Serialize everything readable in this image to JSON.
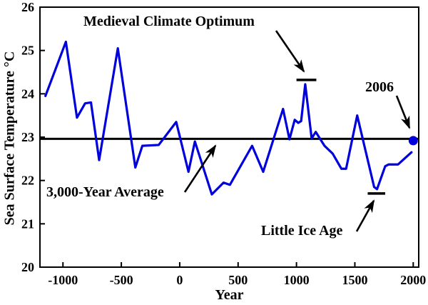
{
  "figure": {
    "background": "#ffffff",
    "axis_color": "#000000",
    "line_color": "#0000dd"
  },
  "chart_data": {
    "type": "line",
    "title": "",
    "xlabel": "Year",
    "ylabel": "Sea Surface Temperature °C",
    "xlim": [
      -1197,
      2047
    ],
    "ylim": [
      20,
      26
    ],
    "xticks": [
      -1000,
      -500,
      0,
      500,
      1000,
      1500,
      2000
    ],
    "yticks": [
      20,
      21,
      22,
      23,
      24,
      25,
      26
    ],
    "grid": false,
    "series": [
      {
        "name": "Sea surface temperature",
        "color": "#0000dd",
        "points": [
          [
            -1150,
            23.95
          ],
          [
            -975,
            25.2
          ],
          [
            -880,
            23.45
          ],
          [
            -810,
            23.78
          ],
          [
            -760,
            23.8
          ],
          [
            -690,
            22.47
          ],
          [
            -530,
            25.05
          ],
          [
            -380,
            22.3
          ],
          [
            -320,
            22.8
          ],
          [
            -180,
            22.82
          ],
          [
            -30,
            23.35
          ],
          [
            75,
            22.2
          ],
          [
            130,
            22.9
          ],
          [
            275,
            21.68
          ],
          [
            375,
            21.95
          ],
          [
            430,
            21.9
          ],
          [
            620,
            22.8
          ],
          [
            715,
            22.2
          ],
          [
            885,
            23.65
          ],
          [
            940,
            22.95
          ],
          [
            985,
            23.4
          ],
          [
            1015,
            23.33
          ],
          [
            1040,
            23.37
          ],
          [
            1075,
            24.22
          ],
          [
            1130,
            22.97
          ],
          [
            1165,
            23.12
          ],
          [
            1240,
            22.8
          ],
          [
            1310,
            22.62
          ],
          [
            1385,
            22.27
          ],
          [
            1425,
            22.27
          ],
          [
            1520,
            23.5
          ],
          [
            1665,
            21.85
          ],
          [
            1690,
            21.8
          ],
          [
            1760,
            22.33
          ],
          [
            1790,
            22.37
          ],
          [
            1870,
            22.37
          ],
          [
            1985,
            22.65
          ]
        ]
      }
    ],
    "average_line": {
      "value": 22.96,
      "label": "3,000-Year Average",
      "color": "#000000"
    },
    "endpoint": {
      "x": 2000,
      "y": 22.92,
      "label": "2006",
      "color": "#0000dd"
    },
    "range_markers": [
      {
        "label": "Medieval Climate Optimum",
        "x1": 1000,
        "x2": 1170,
        "y": 24.32
      },
      {
        "label": "Little Ice Age",
        "x1": 1610,
        "x2": 1760,
        "y": 21.7
      }
    ]
  }
}
